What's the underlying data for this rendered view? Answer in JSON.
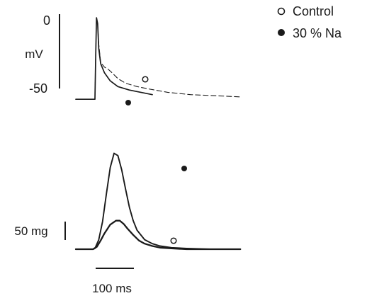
{
  "chart_data": [
    {
      "type": "line",
      "panel": "action-potential",
      "ylabel": "mV",
      "y_ticks": [
        "0",
        "-50"
      ],
      "ylim": [
        -70,
        5
      ],
      "legend": {
        "position": "top-right",
        "entries": [
          {
            "marker": "open-circle",
            "label": "Control"
          },
          {
            "marker": "filled-circle",
            "label": "30 % Na"
          }
        ]
      },
      "series": [
        {
          "name": "Control",
          "marker": "open-circle",
          "style": "dashed",
          "x": [
            0,
            40,
            50,
            52,
            54,
            57,
            60,
            65,
            75,
            85,
            95,
            110,
            130,
            160,
            190,
            240,
            300,
            370,
            430
          ],
          "y": [
            -68,
            -68,
            -68,
            -30,
            3,
            -2,
            -20,
            -36,
            -40,
            -42,
            -45,
            -50,
            -54,
            -57,
            -59,
            -62,
            -64,
            -65,
            -66
          ]
        },
        {
          "name": "30 % Na",
          "marker": "filled-circle",
          "style": "solid",
          "x": [
            0,
            40,
            50,
            52,
            54,
            57,
            60,
            65,
            75,
            90,
            110,
            140,
            170,
            200
          ],
          "y": [
            -68,
            -68,
            -68,
            -30,
            3,
            -2,
            -24,
            -37,
            -45,
            -52,
            -57,
            -60,
            -62,
            -64
          ]
        }
      ]
    },
    {
      "type": "line",
      "panel": "tension",
      "scale_bars": {
        "y_label": "50 mg",
        "x_label": "100 ms"
      },
      "series": [
        {
          "name": "30 % Na",
          "marker": "filled-circle",
          "x": [
            0,
            45,
            50,
            60,
            70,
            80,
            90,
            100,
            110,
            120,
            130,
            140,
            150,
            160,
            180,
            200,
            220,
            250,
            290,
            350,
            430
          ],
          "y": [
            0,
            0,
            1,
            12,
            35,
            70,
            103,
            121,
            118,
            100,
            76,
            53,
            36,
            24,
            12,
            7,
            4,
            2,
            1,
            0,
            0
          ]
        },
        {
          "name": "Control",
          "marker": "open-circle",
          "x": [
            0,
            45,
            55,
            65,
            75,
            90,
            105,
            115,
            125,
            135,
            150,
            165,
            180,
            200,
            220,
            250,
            290,
            350,
            430
          ],
          "y": [
            0,
            0,
            3,
            11,
            20,
            31,
            36,
            36,
            32,
            26,
            18,
            11,
            7,
            4,
            2,
            1,
            0,
            0,
            0
          ]
        }
      ]
    }
  ]
}
